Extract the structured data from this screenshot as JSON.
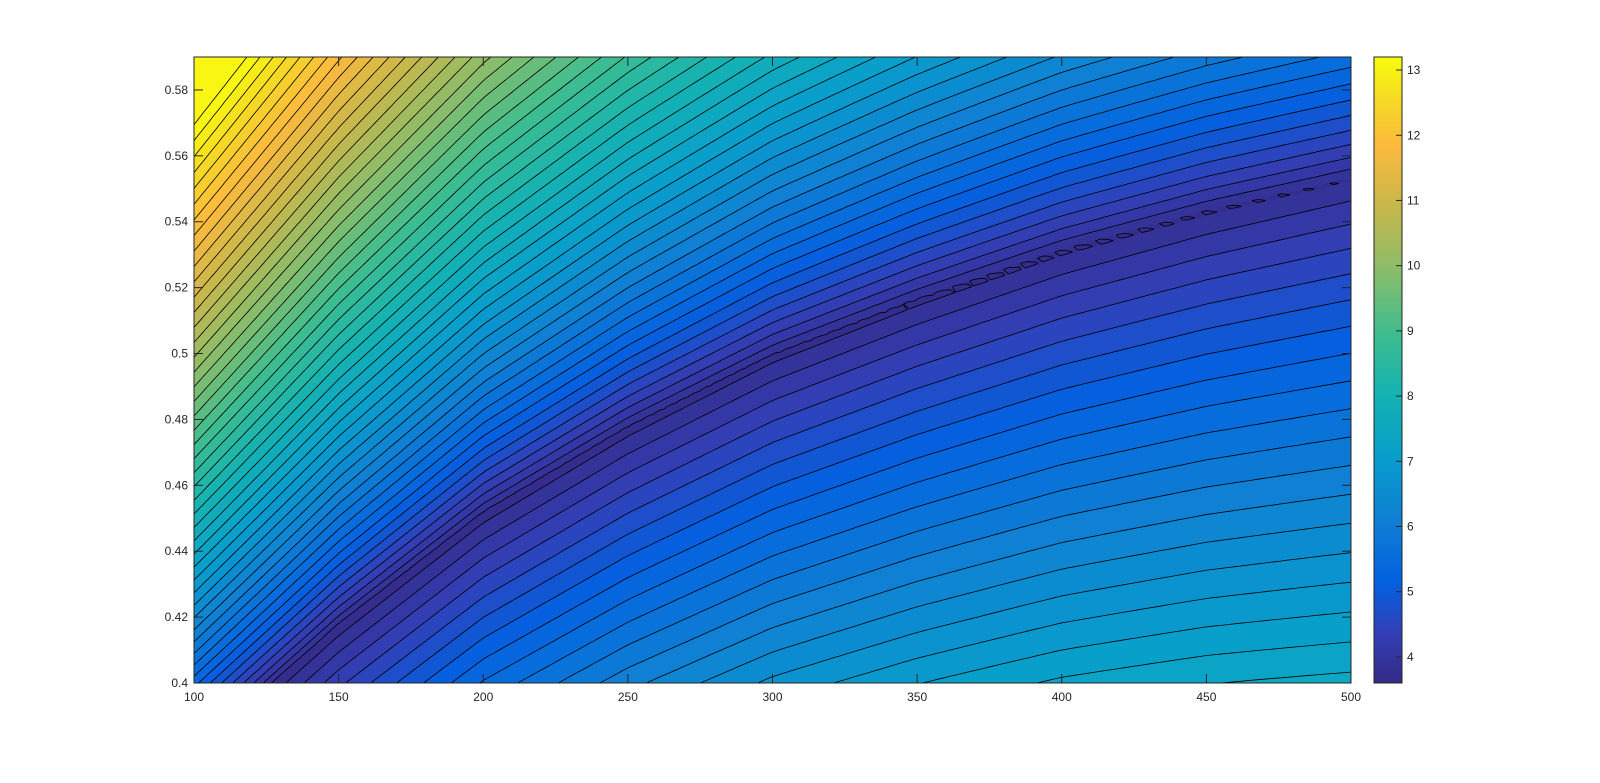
{
  "chart_data": {
    "type": "contour",
    "title": "",
    "xlabel": "",
    "ylabel": "",
    "xlim": [
      100,
      500
    ],
    "ylim": [
      0.4,
      0.59
    ],
    "x_ticks": [
      100,
      150,
      200,
      250,
      300,
      350,
      400,
      450,
      500
    ],
    "y_ticks": [
      0.4,
      0.42,
      0.44,
      0.46,
      0.48,
      0.5,
      0.52,
      0.54,
      0.56,
      0.58
    ],
    "x_tick_labels": [
      "100",
      "150",
      "200",
      "250",
      "300",
      "350",
      "400",
      "450",
      "500"
    ],
    "y_tick_labels": [
      "0.4",
      "0.42",
      "0.44",
      "0.46",
      "0.48",
      "0.5",
      "0.52",
      "0.54",
      "0.56",
      "0.58"
    ],
    "colorbar": {
      "range": [
        3.6,
        13.2
      ],
      "ticks": [
        4,
        5,
        6,
        7,
        8,
        9,
        10,
        11,
        12,
        13
      ],
      "tick_labels": [
        "4",
        "5",
        "6",
        "7",
        "8",
        "9",
        "10",
        "11",
        "12",
        "13"
      ],
      "colormap": "parula"
    },
    "z_range": [
      3.6,
      13.2
    ],
    "contour_levels": "every 0.2",
    "minimum_valley": {
      "description": "",
      "points": [
        [
          100,
          0.378
        ],
        [
          150,
          0.417
        ],
        [
          200,
          0.451
        ],
        [
          250,
          0.477
        ],
        [
          300,
          0.499
        ],
        [
          350,
          0.516
        ],
        [
          400,
          0.531
        ],
        [
          450,
          0.543
        ],
        [
          500,
          0.553
        ]
      ]
    },
    "grid": false,
    "legend": "none"
  },
  "colors": {
    "contour_line": "#000000",
    "axis": "#262626",
    "background": "#ffffff"
  }
}
